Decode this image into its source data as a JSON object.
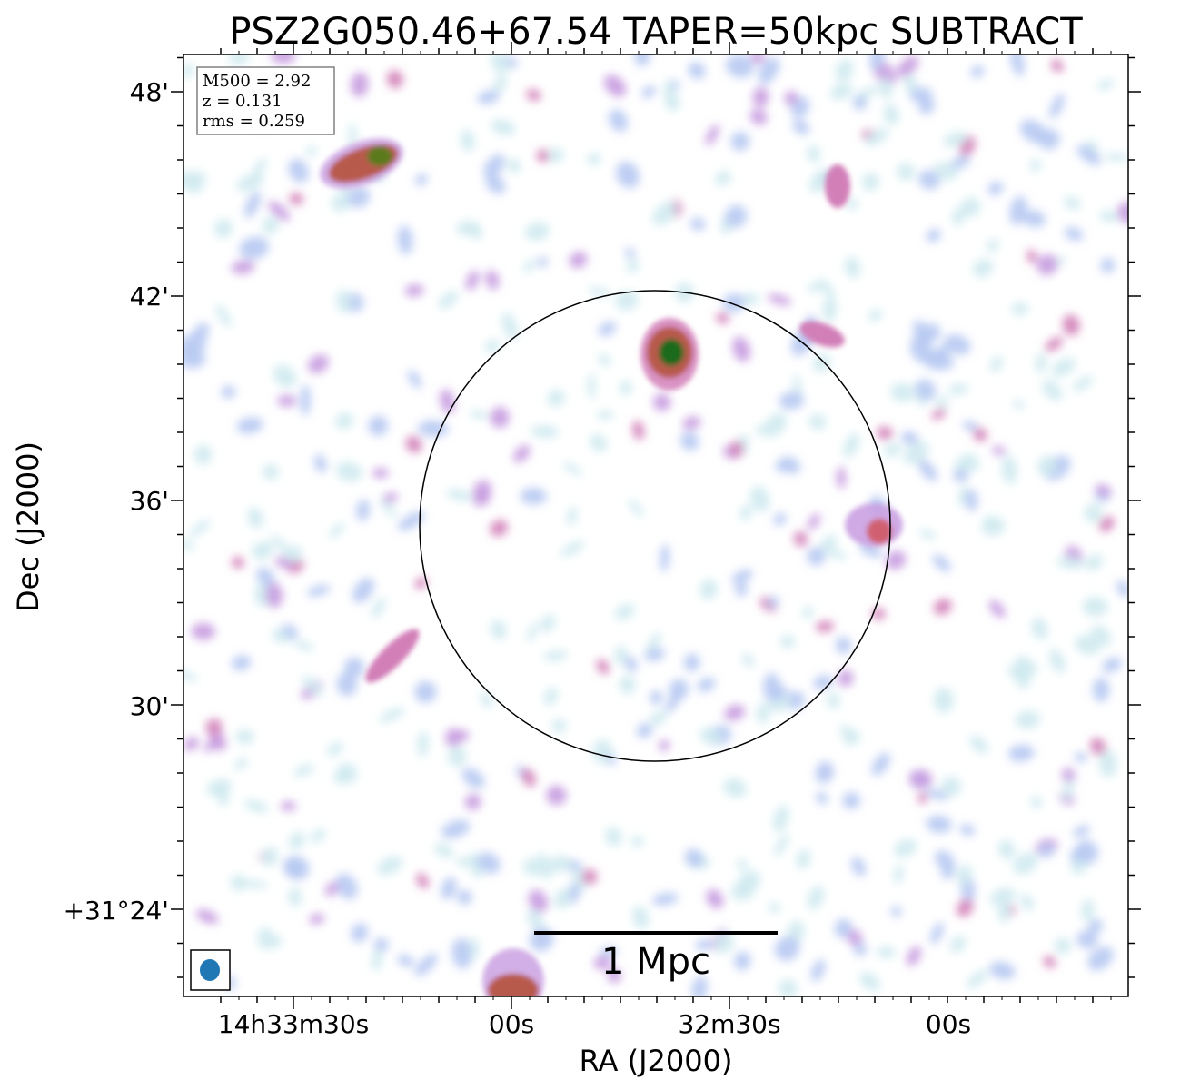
{
  "chart_data": {
    "type": "heatmap",
    "title": "PSZ2G050.46+67.54 TAPER=50kpc SUBTRACT",
    "xlabel": "RA (J2000)",
    "ylabel": "Dec (J2000)",
    "x_tick_labels": [
      "14h33m30s",
      "00s",
      "32m30s",
      "00s"
    ],
    "y_tick_labels": [
      "48'",
      "42'",
      "36'",
      "30'",
      "+31°24'"
    ],
    "info": {
      "mass_line": "M500 = 2.92",
      "redshift_line": "z = 0.131",
      "rms_line": "rms = 0.259"
    },
    "scale_bar_label": "1 Mpc",
    "colormap": [
      "#ffffff",
      "#cfeaf0",
      "#b7c9f2",
      "#c79be0",
      "#d27fb8",
      "#b85a4c",
      "#5a7a1e",
      "#1e6b1a"
    ],
    "beam_color": "#1f77b4",
    "circle_color": "#000000",
    "sources": [
      {
        "name": "central compact source",
        "ra": "14h32m38s",
        "dec": "+31°40'",
        "peak": "high"
      },
      {
        "name": "north-west compact source",
        "ra": "14h33m25s",
        "dec": "+31°46'",
        "peak": "high"
      },
      {
        "name": "southern edge source",
        "ra": "14h33m00s",
        "dec": "+31°22'",
        "peak": "medium"
      },
      {
        "name": "eastern source",
        "ra": "14h32m05s",
        "dec": "+31°35'",
        "peak": "medium"
      }
    ]
  }
}
